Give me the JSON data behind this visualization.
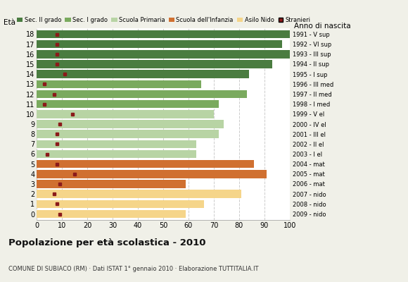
{
  "ages": [
    18,
    17,
    16,
    15,
    14,
    13,
    12,
    11,
    10,
    9,
    8,
    7,
    6,
    5,
    4,
    3,
    2,
    1,
    0
  ],
  "bar_values": [
    100,
    97,
    100,
    93,
    84,
    65,
    83,
    72,
    70,
    74,
    72,
    63,
    63,
    86,
    91,
    59,
    81,
    66,
    59
  ],
  "stranieri": [
    8,
    8,
    8,
    8,
    11,
    3,
    7,
    3,
    14,
    9,
    8,
    8,
    4,
    8,
    15,
    9,
    7,
    8,
    9
  ],
  "year_labels": [
    "1991 - V sup",
    "1992 - VI sup",
    "1993 - III sup",
    "1994 - II sup",
    "1995 - I sup",
    "1996 - III med",
    "1997 - II med",
    "1998 - I med",
    "1999 - V el",
    "2000 - IV el",
    "2001 - III el",
    "2002 - II el",
    "2003 - I el",
    "2004 - mat",
    "2005 - mat",
    "2006 - mat",
    "2007 - nido",
    "2008 - nido",
    "2009 - nido"
  ],
  "bar_colors": [
    "#4a7c40",
    "#4a7c40",
    "#4a7c40",
    "#4a7c40",
    "#4a7c40",
    "#7aaa5e",
    "#7aaa5e",
    "#7aaa5e",
    "#b8d4a4",
    "#b8d4a4",
    "#b8d4a4",
    "#b8d4a4",
    "#b8d4a4",
    "#d07030",
    "#d07030",
    "#d07030",
    "#f5d58a",
    "#f5d58a",
    "#f5d58a"
  ],
  "legend_labels": [
    "Sec. II grado",
    "Sec. I grado",
    "Scuola Primaria",
    "Scuola dell'Infanzia",
    "Asilo Nido",
    "Stranieri"
  ],
  "legend_colors": [
    "#4a7c40",
    "#7aaa5e",
    "#b8d4a4",
    "#d07030",
    "#f5d58a",
    "#8b1a1a"
  ],
  "title": "Popolazione per età scolastica - 2010",
  "subtitle": "COMUNE DI SUBIACO (RM) · Dati ISTAT 1° gennaio 2010 · Elaborazione TUTTITALIA.IT",
  "eta_label": "Età",
  "anno_label": "Anno di nascita",
  "xlim": [
    0,
    100
  ],
  "xticks": [
    0,
    10,
    20,
    30,
    40,
    50,
    60,
    70,
    80,
    90,
    100
  ],
  "background_color": "#f0f0e8",
  "plot_bg_color": "#ffffff",
  "grid_color": "#cccccc",
  "stranieri_color": "#8b1a1a",
  "bar_height": 0.82
}
